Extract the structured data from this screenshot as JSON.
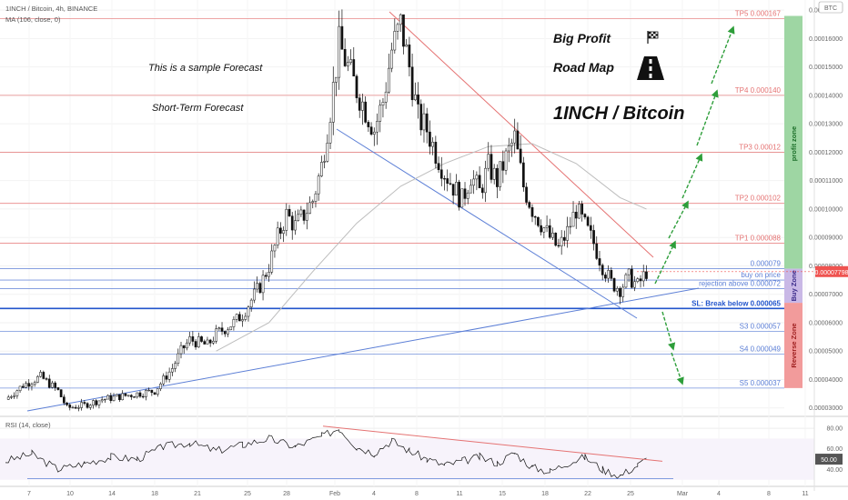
{
  "header": {
    "title": "1INCH / Bitcoin, 4h, BINANCE",
    "ma_label": "MA (106, close, 0)",
    "currency_badge": "BTC"
  },
  "annotations": {
    "sample": "This is a sample Forecast",
    "short_term": "Short-Term Forecast",
    "big_profit": "Big Profit",
    "road_map": "Road Map",
    "pair": "1INCH / Bitcoin",
    "flag_icon": "checkered-flag-icon",
    "road_icon": "road-icon"
  },
  "zones": {
    "profit": "profit zone",
    "buy": "Buy Zone",
    "reverse": "Reverse Zone"
  },
  "colors": {
    "up": "#26a69a",
    "down": "#ef5350",
    "candle": "#111111",
    "resistance": "#e57373",
    "support": "#5c7fd6",
    "arrow": "#2e9e3a",
    "profit_zone": "#9ed6a3",
    "buy_zone": "#c9b8e6",
    "reverse_zone": "#f29b9b",
    "price_badge": "#ef5350"
  },
  "chart_data": {
    "type": "line",
    "title": "1INCH / Bitcoin, 4h, BINANCE",
    "y_axis": {
      "min": 2.8e-05,
      "max": 0.000171,
      "ticks": [
        "0.00017000",
        "0.00016000",
        "0.00015000",
        "0.00014000",
        "0.00013000",
        "0.00012000",
        "0.00011000",
        "0.00010000",
        "0.00009000",
        "0.00008000",
        "0.00007000",
        "0.00006000",
        "0.00005000",
        "0.00004000",
        "0.00003000"
      ],
      "tick_values": [
        0.00017,
        0.00016,
        0.00015,
        0.00014,
        0.00013,
        0.00012,
        0.00011,
        0.0001,
        9e-05,
        8e-05,
        7e-05,
        6e-05,
        5e-05,
        4e-05,
        3e-05
      ],
      "current_price_label": "0.00007798",
      "current_price": 7.798e-05
    },
    "x_axis": {
      "ticks": [
        "7",
        "10",
        "14",
        "18",
        "21",
        "25",
        "28",
        "Feb",
        "4",
        "8",
        "11",
        "15",
        "18",
        "22",
        "25",
        "Mar",
        "4",
        "8",
        "11"
      ]
    },
    "price_series": [
      {
        "x": 0,
        "y": 3.3e-05
      },
      {
        "x": 2,
        "y": 3.8e-05
      },
      {
        "x": 4,
        "y": 4.1e-05
      },
      {
        "x": 6,
        "y": 3.6e-05
      },
      {
        "x": 7,
        "y": 3e-05
      },
      {
        "x": 9,
        "y": 3.1e-05
      },
      {
        "x": 11,
        "y": 3.3e-05
      },
      {
        "x": 13,
        "y": 3.4e-05
      },
      {
        "x": 15,
        "y": 3.5e-05
      },
      {
        "x": 17,
        "y": 3.6e-05
      },
      {
        "x": 18,
        "y": 4e-05
      },
      {
        "x": 19,
        "y": 4.4e-05
      },
      {
        "x": 20,
        "y": 5e-05
      },
      {
        "x": 21,
        "y": 5.4e-05
      },
      {
        "x": 23,
        "y": 5.2e-05
      },
      {
        "x": 24,
        "y": 5.6e-05
      },
      {
        "x": 26,
        "y": 6e-05
      },
      {
        "x": 27,
        "y": 6.3e-05
      },
      {
        "x": 28,
        "y": 6.8e-05
      },
      {
        "x": 29,
        "y": 7.3e-05
      },
      {
        "x": 30,
        "y": 8e-05
      },
      {
        "x": 31,
        "y": 9e-05
      },
      {
        "x": 32,
        "y": 9.8e-05
      },
      {
        "x": 33,
        "y": 9.4e-05
      },
      {
        "x": 34,
        "y": 9.8e-05
      },
      {
        "x": 35,
        "y": 0.000103
      },
      {
        "x": 36,
        "y": 0.000115
      },
      {
        "x": 37,
        "y": 0.000135
      },
      {
        "x": 38,
        "y": 0.000158
      },
      {
        "x": 39,
        "y": 0.00015
      },
      {
        "x": 40,
        "y": 0.000142
      },
      {
        "x": 41,
        "y": 0.000135
      },
      {
        "x": 42,
        "y": 0.000128
      },
      {
        "x": 43,
        "y": 0.000138
      },
      {
        "x": 44,
        "y": 0.000156
      },
      {
        "x": 45,
        "y": 0.000165
      },
      {
        "x": 46,
        "y": 0.00015
      },
      {
        "x": 47,
        "y": 0.000132
      },
      {
        "x": 48,
        "y": 0.000128
      },
      {
        "x": 49,
        "y": 0.00012
      },
      {
        "x": 50,
        "y": 0.000113
      },
      {
        "x": 51,
        "y": 0.000108
      },
      {
        "x": 52,
        "y": 0.000103
      },
      {
        "x": 53,
        "y": 0.000112
      },
      {
        "x": 54,
        "y": 0.000106
      },
      {
        "x": 55,
        "y": 0.000115
      },
      {
        "x": 56,
        "y": 0.00011
      },
      {
        "x": 57,
        "y": 0.000118
      },
      {
        "x": 58,
        "y": 0.000125
      },
      {
        "x": 59,
        "y": 0.000108
      },
      {
        "x": 60,
        "y": 0.0001
      },
      {
        "x": 61,
        "y": 9.5e-05
      },
      {
        "x": 62,
        "y": 9e-05
      },
      {
        "x": 63,
        "y": 8.6e-05
      },
      {
        "x": 64,
        "y": 9.2e-05
      },
      {
        "x": 65,
        "y": 0.0001
      },
      {
        "x": 66,
        "y": 9.4e-05
      },
      {
        "x": 67,
        "y": 8.8e-05
      },
      {
        "x": 68,
        "y": 8e-05
      },
      {
        "x": 69,
        "y": 7.4e-05
      },
      {
        "x": 70,
        "y": 7.2e-05
      },
      {
        "x": 71,
        "y": 7.6e-05
      },
      {
        "x": 72,
        "y": 7.3e-05
      },
      {
        "x": 73,
        "y": 7.8e-05
      }
    ],
    "ma_series": [
      {
        "x": 24,
        "y": 5e-05
      },
      {
        "x": 30,
        "y": 6e-05
      },
      {
        "x": 35,
        "y": 7.8e-05
      },
      {
        "x": 40,
        "y": 9.5e-05
      },
      {
        "x": 45,
        "y": 0.000108
      },
      {
        "x": 50,
        "y": 0.000116
      },
      {
        "x": 55,
        "y": 0.000122
      },
      {
        "x": 60,
        "y": 0.000123
      },
      {
        "x": 65,
        "y": 0.000116
      },
      {
        "x": 70,
        "y": 0.000104
      },
      {
        "x": 73,
        "y": 0.0001
      }
    ],
    "levels": [
      {
        "label": "TP5 0.000167",
        "value": 0.000167,
        "color": "#e57373"
      },
      {
        "label": "TP4 0.000140",
        "value": 0.00014,
        "color": "#e57373"
      },
      {
        "label": "TP3 0.00012",
        "value": 0.00012,
        "color": "#e57373"
      },
      {
        "label": "TP2 0.000102",
        "value": 0.000102,
        "color": "#e57373"
      },
      {
        "label": "TP1 0.000088",
        "value": 8.8e-05,
        "color": "#e57373"
      },
      {
        "label": "0.000079",
        "value": 7.9e-05,
        "color": "#5c7fd6"
      },
      {
        "label": "buy on price",
        "value": 7.5e-05,
        "color": "#5c7fd6"
      },
      {
        "label": "rejection above 0.000072",
        "value": 7.2e-05,
        "color": "#5c7fd6"
      },
      {
        "label": "SL: Break below 0.000065",
        "value": 6.5e-05,
        "color": "#2255cc"
      },
      {
        "label": "S3 0.000057",
        "value": 5.7e-05,
        "color": "#5c7fd6"
      },
      {
        "label": "S4 0.000049",
        "value": 4.9e-05,
        "color": "#5c7fd6"
      },
      {
        "label": "S5 0.000037",
        "value": 3.7e-05,
        "color": "#5c7fd6"
      }
    ],
    "rsi": {
      "label": "RSI (14, close)",
      "ticks": [
        "80.00",
        "60.00",
        "50.00",
        "40.00"
      ],
      "tick_values": [
        80,
        60,
        50,
        40
      ],
      "current_label": "50.00",
      "current": 50,
      "min": 28,
      "max": 88,
      "series": [
        {
          "x": 0,
          "y": 48
        },
        {
          "x": 3,
          "y": 55
        },
        {
          "x": 6,
          "y": 40
        },
        {
          "x": 9,
          "y": 46
        },
        {
          "x": 12,
          "y": 52
        },
        {
          "x": 15,
          "y": 50
        },
        {
          "x": 18,
          "y": 62
        },
        {
          "x": 21,
          "y": 66
        },
        {
          "x": 24,
          "y": 58
        },
        {
          "x": 27,
          "y": 64
        },
        {
          "x": 30,
          "y": 70
        },
        {
          "x": 33,
          "y": 62
        },
        {
          "x": 36,
          "y": 72
        },
        {
          "x": 38,
          "y": 80
        },
        {
          "x": 40,
          "y": 62
        },
        {
          "x": 42,
          "y": 56
        },
        {
          "x": 44,
          "y": 68
        },
        {
          "x": 46,
          "y": 58
        },
        {
          "x": 48,
          "y": 50
        },
        {
          "x": 50,
          "y": 44
        },
        {
          "x": 52,
          "y": 48
        },
        {
          "x": 54,
          "y": 52
        },
        {
          "x": 56,
          "y": 46
        },
        {
          "x": 58,
          "y": 56
        },
        {
          "x": 60,
          "y": 42
        },
        {
          "x": 62,
          "y": 38
        },
        {
          "x": 64,
          "y": 46
        },
        {
          "x": 66,
          "y": 52
        },
        {
          "x": 68,
          "y": 40
        },
        {
          "x": 70,
          "y": 34
        },
        {
          "x": 72,
          "y": 44
        },
        {
          "x": 73,
          "y": 50
        }
      ]
    }
  }
}
